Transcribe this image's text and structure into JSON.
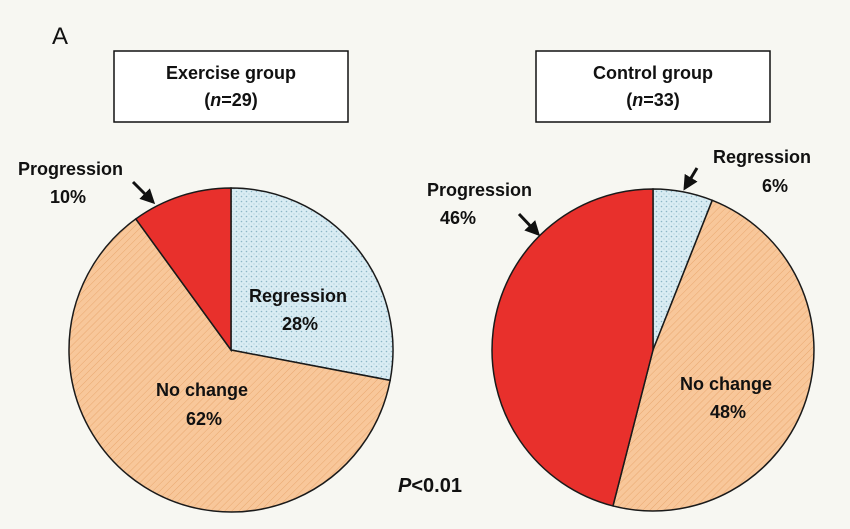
{
  "panel_label": "A",
  "p_value": {
    "symbol": "P",
    "text": "<0.01"
  },
  "colors": {
    "background": "#f7f7f2",
    "no_change": "#f8c79a",
    "regression": "#d9ecf3",
    "progression": "#e8302c",
    "outline": "#1a1a1a"
  },
  "chart_data": [
    {
      "type": "pie",
      "title_line1": "Exercise group",
      "title_n_symbol": "n",
      "title_n_value": "=29",
      "slices": [
        {
          "label": "Regression",
          "value": 28,
          "value_label": "28%",
          "color": "#d9ecf3"
        },
        {
          "label": "No change",
          "value": 62,
          "value_label": "62%",
          "color": "#f8c79a"
        },
        {
          "label": "Progression",
          "value": 10,
          "value_label": "10%",
          "color": "#e8302c"
        }
      ]
    },
    {
      "type": "pie",
      "title_line1": "Control group",
      "title_n_symbol": "n",
      "title_n_value": "=33",
      "slices": [
        {
          "label": "Regression",
          "value": 6,
          "value_label": "6%",
          "color": "#d9ecf3"
        },
        {
          "label": "No change",
          "value": 48,
          "value_label": "48%",
          "color": "#f8c79a"
        },
        {
          "label": "Progression",
          "value": 46,
          "value_label": "46%",
          "color": "#e8302c"
        }
      ]
    }
  ]
}
